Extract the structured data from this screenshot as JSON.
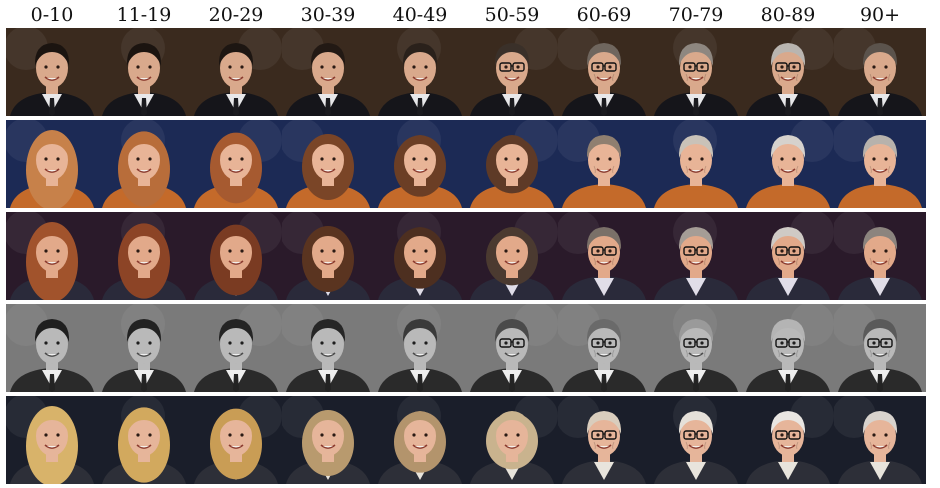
{
  "figure": {
    "age_groups": [
      "0-10",
      "11-19",
      "20-29",
      "30-39",
      "40-49",
      "50-59",
      "60-69",
      "70-79",
      "80-89",
      "90+"
    ],
    "rows": [
      {
        "subject": "man-dark-hair",
        "background": "#3a2a1e",
        "skin": "#d9a98c",
        "hair": [
          "#1b1410",
          "#1b1410",
          "#1d1612",
          "#221914",
          "#2a211b",
          "#3a3029",
          "#6f665e",
          "#8e8780",
          "#b9b5b0",
          "#5b534c"
        ],
        "glasses": [
          false,
          false,
          false,
          false,
          false,
          true,
          true,
          true,
          true,
          false
        ],
        "clothing": "#15151a",
        "shirt": "#e8e8ea",
        "tie": "#1a1a1e",
        "grayscale": false
      },
      {
        "subject": "woman-auburn-hair",
        "background": "#1c2a55",
        "skin": "#e8b497",
        "hair": [
          "#c7814a",
          "#b86d3a",
          "#a65a30",
          "#7a4527",
          "#6b3e25",
          "#5e3a27",
          "#8f7f70",
          "#c9c2b8",
          "#d6d2cd",
          "#b7b2ac"
        ],
        "glasses": [
          false,
          false,
          false,
          false,
          false,
          false,
          false,
          false,
          false,
          false
        ],
        "clothing": "#c46a2a",
        "shirt": null,
        "tie": null,
        "grayscale": false
      },
      {
        "subject": "woman-to-man-red-hair",
        "background": "#2a1a2a",
        "skin": "#e2a98a",
        "hair": [
          "#a1532c",
          "#8c4426",
          "#7a3b22",
          "#5a3420",
          "#4d2f20",
          "#4b3a30",
          "#7a7068",
          "#a59d96",
          "#cfcac5",
          "#8b847e"
        ],
        "glasses": [
          false,
          false,
          false,
          false,
          false,
          false,
          true,
          true,
          true,
          false
        ],
        "clothing": "#2a2a3a",
        "shirt": "#e0dde8",
        "tie": null,
        "grayscale": false
      },
      {
        "subject": "man-bw-portrait",
        "background": "#7a7a7a",
        "skin": "#b9b9b9",
        "hair": [
          "#1f1f1f",
          "#222222",
          "#242424",
          "#262626",
          "#3a3a3a",
          "#4a4a4a",
          "#6a6a6a",
          "#9a9a9a",
          "#b4b4b4",
          "#5a5a5a"
        ],
        "glasses": [
          false,
          false,
          false,
          false,
          false,
          true,
          true,
          true,
          true,
          true
        ],
        "clothing": "#2a2a2a",
        "shirt": "#eeeeee",
        "tie": "#3a1e14",
        "grayscale": true
      },
      {
        "subject": "woman-to-man-blonde",
        "background": "#1a1e2a",
        "skin": "#e6b59a",
        "hair": [
          "#d8b36a",
          "#d2a95e",
          "#c99d55",
          "#b89a6e",
          "#b3946c",
          "#c9b38e",
          "#d9cdbd",
          "#e5e0d9",
          "#e9e6e2",
          "#d8d3cd"
        ],
        "glasses": [
          false,
          false,
          false,
          false,
          false,
          false,
          true,
          true,
          true,
          false
        ],
        "clothing": "#2d2f38",
        "shirt": "#e8e4dc",
        "tie": null,
        "grayscale": false
      }
    ]
  }
}
